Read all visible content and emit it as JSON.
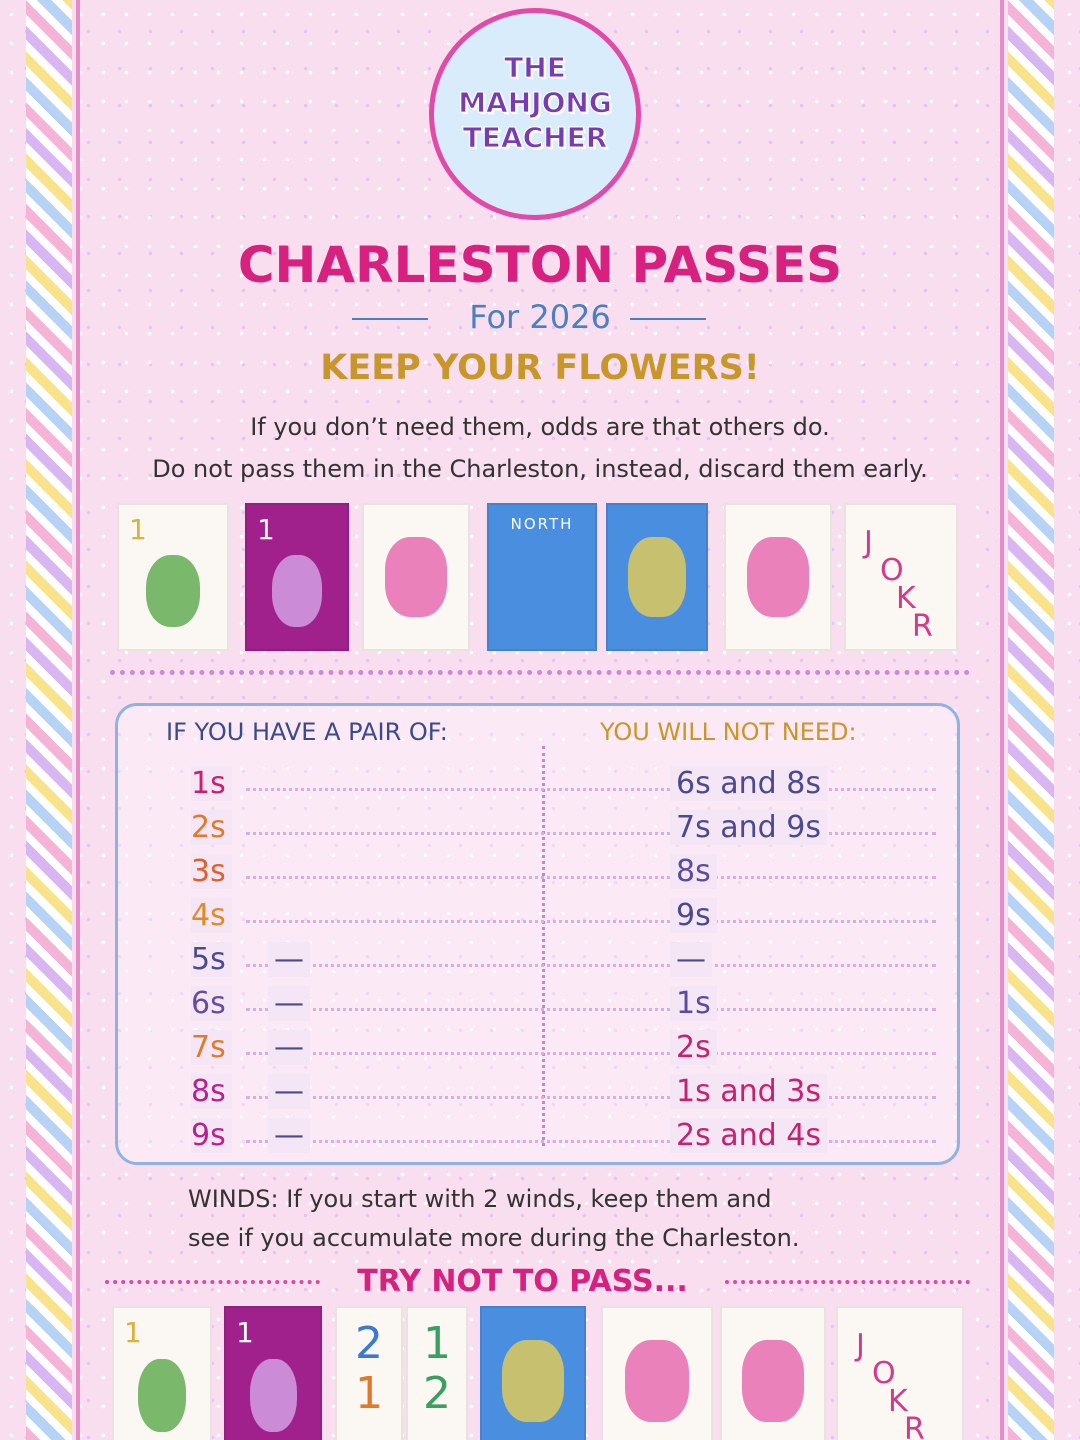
{
  "logo": {
    "lines": [
      "THE",
      "MAHJONG",
      "TEACHER"
    ]
  },
  "title": "CHARLESTON PASSES",
  "subtitle": "For 2026",
  "heading": "KEEP YOUR FLOWERS!",
  "intro": [
    "If you don’t need them, odds are that others do.",
    "Do not pass them in the Charleston, instead, discard them  early."
  ],
  "top_tiles": [
    {
      "color": "#fbf8f3",
      "label": "1",
      "label_color": "#d8b23a"
    },
    {
      "color": "#a0208c",
      "label": "1",
      "label_color": "#ffffff"
    },
    {
      "color": "#fbf8f3"
    },
    {
      "color": "#4a8ee0",
      "label": "NORTH",
      "label_color": "#ffffff"
    },
    {
      "color": "#4a8ee0"
    },
    {
      "color": "#fbf8f3"
    },
    {
      "color": "#fbf8f3",
      "letters": [
        "J",
        "O",
        "K",
        "R"
      ],
      "label_color": "#d43a8a"
    }
  ],
  "table": {
    "headers": [
      "IF YOU HAVE A PAIR OF:",
      "YOU WILL NOT NEED:"
    ],
    "rows": [
      {
        "pair": "1s",
        "need": "6s and 8s",
        "color": "#c8206e",
        "need_color": "#4a4a90"
      },
      {
        "pair": "2s",
        "need": "7s and 9s",
        "color": "#e07a2a",
        "need_color": "#4a4a90"
      },
      {
        "pair": "3s",
        "need": "8s",
        "color": "#e0602a",
        "need_color": "#5a4aa0"
      },
      {
        "pair": "4s",
        "need": "9s",
        "color": "#e08a2a",
        "need_color": "#4a4a90"
      },
      {
        "pair": "5s",
        "dash": "—",
        "need": "—",
        "color": "#4a4a90",
        "need_color": "#4a4a90"
      },
      {
        "pair": "6s",
        "dash": "—",
        "need": "1s",
        "color": "#6a4aa0",
        "need_color": "#5a4aa0"
      },
      {
        "pair": "7s",
        "dash": "—",
        "need": "2s",
        "color": "#e07a2a",
        "need_color": "#c8206e"
      },
      {
        "pair": "8s",
        "dash": "—",
        "need": "1s and 3s",
        "color": "#b8208e",
        "need_color": "#c8206e"
      },
      {
        "pair": "9s",
        "dash": "—",
        "need": "2s and 4s",
        "color": "#b8208e",
        "need_color": "#c8206e"
      }
    ]
  },
  "winds": [
    "WINDS: If you start with 2 winds, keep them and",
    "see if you accumulate more during the Charleston."
  ],
  "try_heading": "TRY NOT TO PASS...",
  "bottom_tiles": [
    {
      "color": "#fbf8f3",
      "label": "1",
      "label_color": "#d8b23a"
    },
    {
      "color": "#a0208c",
      "label": "1",
      "label_color": "#ffffff"
    },
    {
      "color": "#fbf8f3",
      "pair": [
        "2",
        "1"
      ],
      "pair_colors": [
        "#3a7ad0",
        "#e07a2a"
      ]
    },
    {
      "color": "#fbf8f3",
      "pair": [
        "1",
        "2"
      ],
      "pair_colors": [
        "#3aa060",
        "#3aa060"
      ]
    },
    {
      "color": "#4a8ee0"
    },
    {
      "color": "#fbf8f3"
    },
    {
      "color": "#fbf8f3"
    },
    {
      "color": "#fbf8f3",
      "letters": [
        "J",
        "O",
        "K",
        "R"
      ],
      "label_color": "#d43a8a"
    }
  ]
}
